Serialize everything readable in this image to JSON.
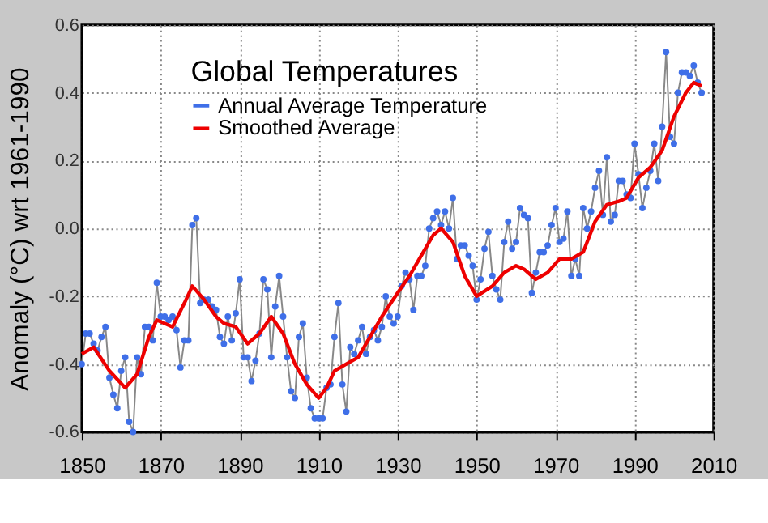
{
  "chart_data": {
    "type": "line",
    "title": "Global Temperatures",
    "ylabel": "Anomaly (°C) wrt 1961-1990",
    "xlim": [
      1850,
      2010
    ],
    "xticks": [
      1850,
      1870,
      1890,
      1910,
      1930,
      1950,
      1970,
      1990,
      2010
    ],
    "ylim": [
      -0.6,
      0.6
    ],
    "yticks": [
      -0.6,
      -0.4,
      -0.2,
      {
        "value": 0,
        "label": "0.0"
      },
      0.2,
      0.4,
      0.6
    ],
    "grid": true,
    "legend": "top left",
    "line_style": "solid",
    "series": [
      {
        "name": "Annual Average Temperature",
        "color": "#3f6fe8",
        "marker": "circle",
        "x": [
          1850,
          1851,
          1852,
          1853,
          1854,
          1855,
          1856,
          1857,
          1858,
          1859,
          1860,
          1861,
          1862,
          1863,
          1864,
          1865,
          1866,
          1867,
          1868,
          1869,
          1870,
          1871,
          1872,
          1873,
          1874,
          1875,
          1876,
          1877,
          1878,
          1879,
          1880,
          1881,
          1882,
          1883,
          1884,
          1885,
          1886,
          1887,
          1888,
          1889,
          1890,
          1891,
          1892,
          1893,
          1894,
          1895,
          1896,
          1897,
          1898,
          1899,
          1900,
          1901,
          1902,
          1903,
          1904,
          1905,
          1906,
          1907,
          1908,
          1909,
          1910,
          1911,
          1912,
          1913,
          1914,
          1915,
          1916,
          1917,
          1918,
          1919,
          1920,
          1921,
          1922,
          1923,
          1924,
          1925,
          1926,
          1927,
          1928,
          1929,
          1930,
          1931,
          1932,
          1933,
          1934,
          1935,
          1936,
          1937,
          1938,
          1939,
          1940,
          1941,
          1942,
          1943,
          1944,
          1945,
          1946,
          1947,
          1948,
          1949,
          1950,
          1951,
          1952,
          1953,
          1954,
          1955,
          1956,
          1957,
          1958,
          1959,
          1960,
          1961,
          1962,
          1963,
          1964,
          1965,
          1966,
          1967,
          1968,
          1969,
          1970,
          1971,
          1972,
          1973,
          1974,
          1975,
          1976,
          1977,
          1978,
          1979,
          1980,
          1981,
          1982,
          1983,
          1984,
          1985,
          1986,
          1987,
          1988,
          1989,
          1990,
          1991,
          1992,
          1993,
          1994,
          1995,
          1996,
          1997,
          1998,
          1999,
          2000,
          2001,
          2002,
          2003,
          2004,
          2005,
          2006,
          2007
        ],
        "values": [
          -0.4,
          -0.31,
          -0.31,
          -0.34,
          -0.36,
          -0.32,
          -0.29,
          -0.44,
          -0.49,
          -0.53,
          -0.42,
          -0.38,
          -0.57,
          -0.6,
          -0.38,
          -0.43,
          -0.29,
          -0.29,
          -0.33,
          -0.16,
          -0.26,
          -0.26,
          -0.27,
          -0.26,
          -0.3,
          -0.41,
          -0.33,
          -0.33,
          0.01,
          0.03,
          -0.22,
          -0.21,
          -0.21,
          -0.23,
          -0.24,
          -0.32,
          -0.34,
          -0.26,
          -0.33,
          -0.25,
          -0.15,
          -0.38,
          -0.38,
          -0.45,
          -0.39,
          -0.31,
          -0.15,
          -0.18,
          -0.38,
          -0.23,
          -0.14,
          -0.26,
          -0.38,
          -0.48,
          -0.5,
          -0.32,
          -0.28,
          -0.44,
          -0.53,
          -0.56,
          -0.56,
          -0.56,
          -0.47,
          -0.46,
          -0.32,
          -0.22,
          -0.46,
          -0.54,
          -0.35,
          -0.37,
          -0.33,
          -0.29,
          -0.37,
          -0.32,
          -0.3,
          -0.33,
          -0.29,
          -0.2,
          -0.26,
          -0.28,
          -0.26,
          -0.17,
          -0.13,
          -0.15,
          -0.24,
          -0.14,
          -0.14,
          -0.11,
          0.0,
          0.03,
          0.05,
          0.01,
          0.05,
          0.0,
          0.09,
          -0.09,
          -0.05,
          -0.05,
          -0.08,
          -0.11,
          -0.21,
          -0.15,
          -0.06,
          -0.01,
          -0.14,
          -0.18,
          -0.21,
          -0.04,
          0.02,
          -0.06,
          -0.04,
          0.06,
          0.04,
          0.03,
          -0.19,
          -0.13,
          -0.07,
          -0.07,
          -0.05,
          0.01,
          0.06,
          -0.04,
          -0.03,
          0.05,
          -0.14,
          -0.09,
          -0.14,
          0.06,
          0.0,
          0.05,
          0.12,
          0.17,
          0.04,
          0.21,
          0.02,
          0.04,
          0.14,
          0.14,
          0.1,
          0.09,
          0.25,
          0.16,
          0.06,
          0.12,
          0.17,
          0.25,
          0.14,
          0.3,
          0.52,
          0.27,
          0.25,
          0.4,
          0.46,
          0.46,
          0.45,
          0.48,
          0.43,
          0.4
        ]
      },
      {
        "name": "Smoothed Average",
        "color": "#ee0000",
        "marker": "none",
        "x": [
          1850,
          1853,
          1857,
          1861,
          1864,
          1867,
          1869,
          1873,
          1876,
          1878,
          1881,
          1884,
          1886,
          1889,
          1892,
          1895,
          1898,
          1901,
          1904,
          1907,
          1910,
          1912,
          1914,
          1917,
          1920,
          1923,
          1926,
          1930,
          1933,
          1936,
          1939,
          1941,
          1944,
          1947,
          1950,
          1954,
          1957,
          1960,
          1962,
          1965,
          1968,
          1971,
          1974,
          1977,
          1980,
          1983,
          1986,
          1988,
          1991,
          1994,
          1997,
          2000,
          2003,
          2005,
          2007
        ],
        "values": [
          -0.37,
          -0.35,
          -0.42,
          -0.47,
          -0.43,
          -0.32,
          -0.27,
          -0.29,
          -0.22,
          -0.17,
          -0.21,
          -0.26,
          -0.28,
          -0.29,
          -0.34,
          -0.31,
          -0.26,
          -0.31,
          -0.4,
          -0.46,
          -0.5,
          -0.47,
          -0.42,
          -0.4,
          -0.38,
          -0.32,
          -0.26,
          -0.19,
          -0.14,
          -0.08,
          -0.02,
          0.0,
          -0.04,
          -0.14,
          -0.2,
          -0.17,
          -0.13,
          -0.11,
          -0.12,
          -0.15,
          -0.13,
          -0.09,
          -0.09,
          -0.07,
          0.02,
          0.07,
          0.08,
          0.09,
          0.15,
          0.18,
          0.23,
          0.33,
          0.4,
          0.43,
          0.42
        ]
      }
    ]
  }
}
